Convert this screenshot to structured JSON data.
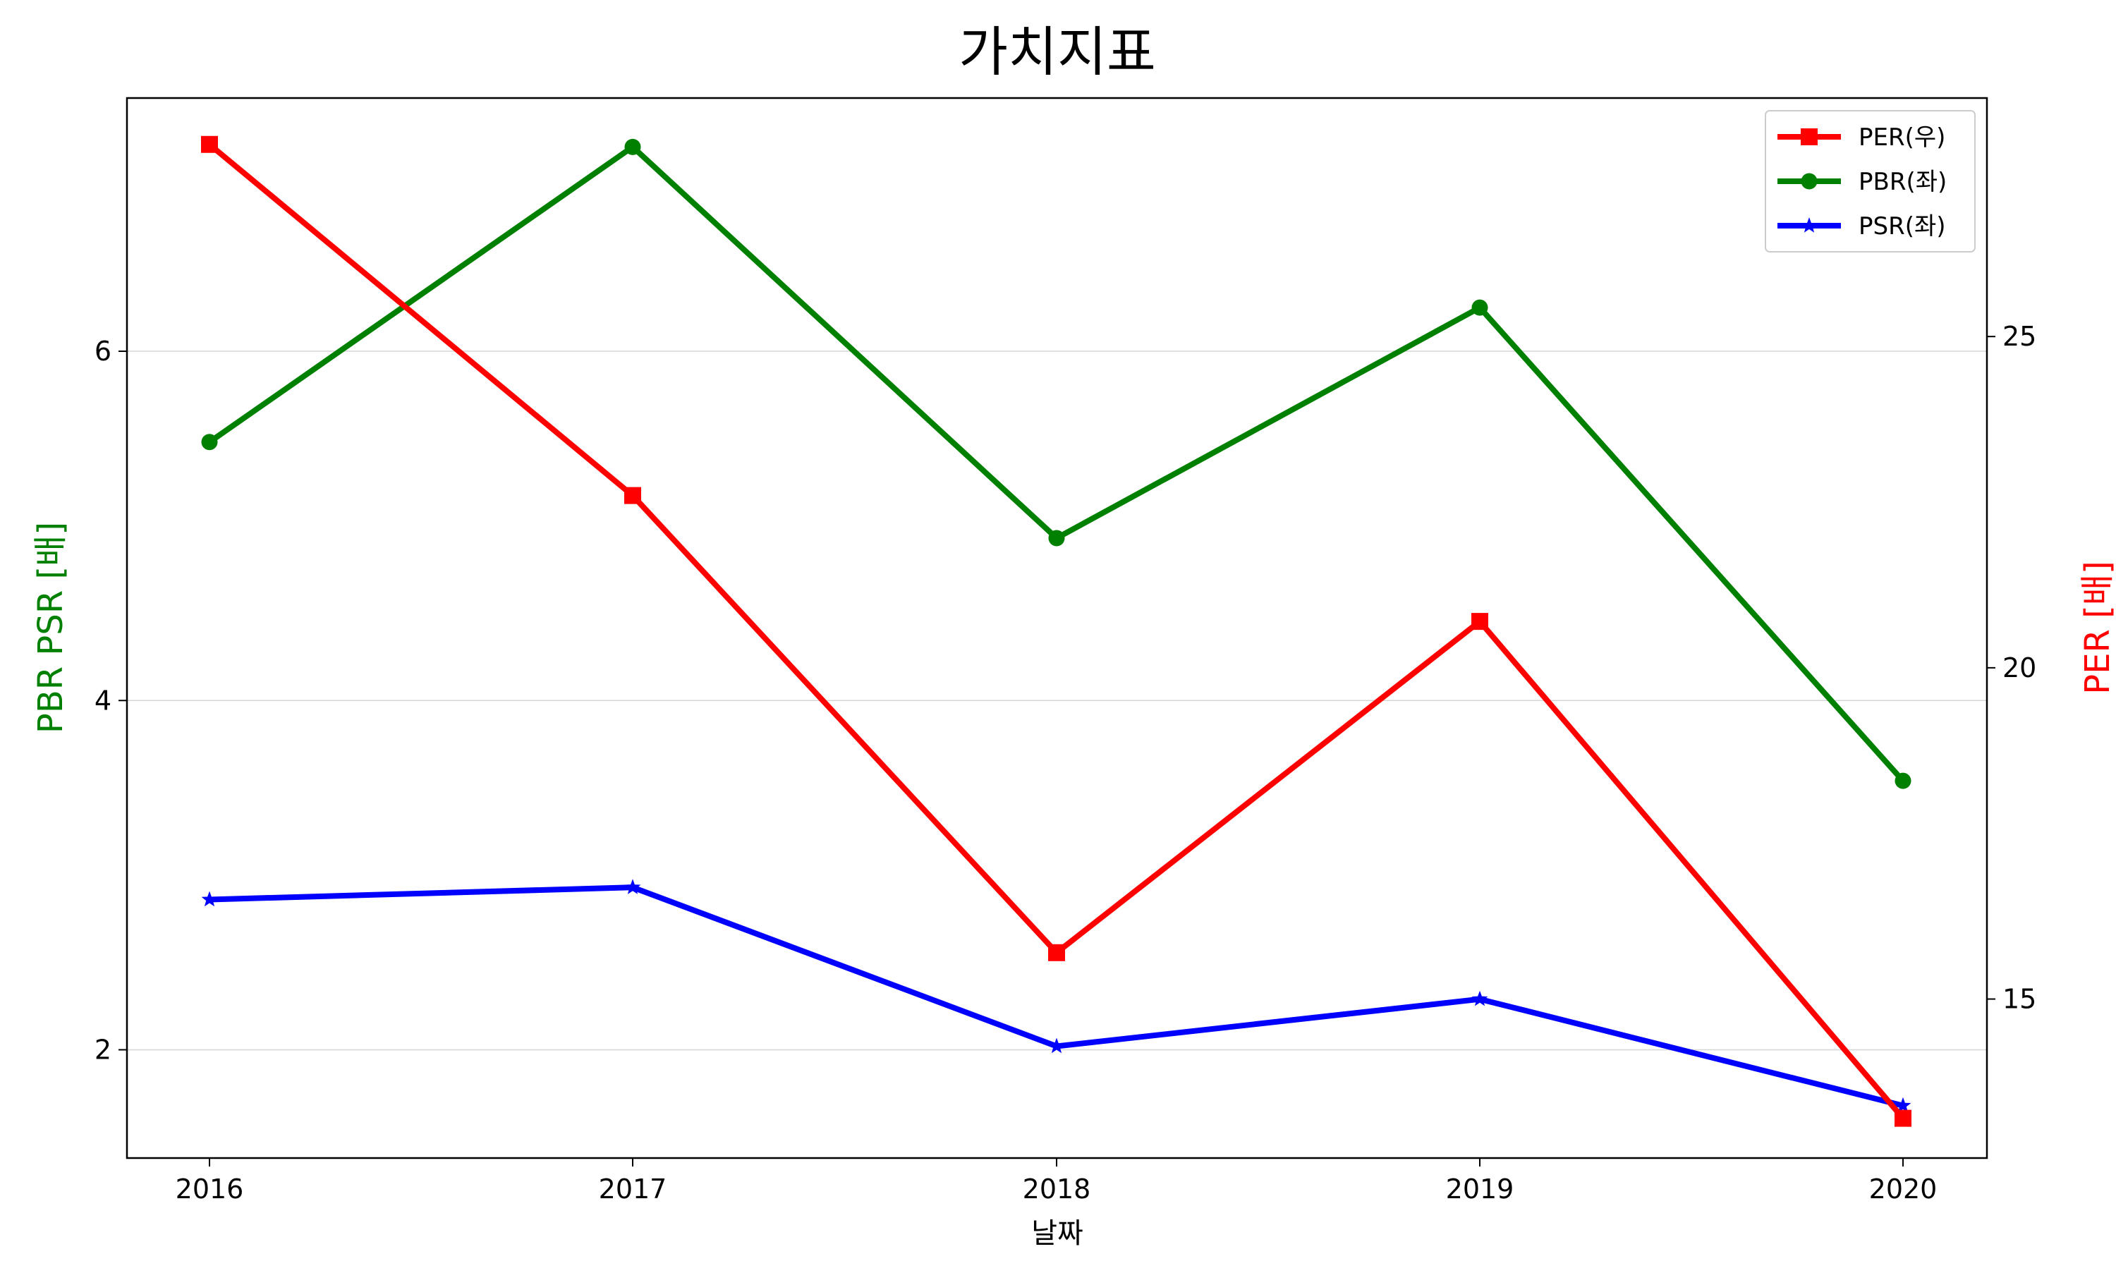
{
  "chart_data": {
    "type": "line",
    "title": "가치지표",
    "xlabel": "날짜",
    "ylabel_left": "PBR PSR [배]",
    "ylabel_right": "PER [배]",
    "x": [
      "2016",
      "2017",
      "2018",
      "2019",
      "2020"
    ],
    "left_axis": {
      "ylim": [
        1.38,
        7.45
      ],
      "ticks": [
        "2",
        "4",
        "6"
      ],
      "tick_values": [
        2,
        4,
        6
      ]
    },
    "right_axis": {
      "ylim": [
        12.6,
        28.6
      ],
      "ticks": [
        "15",
        "20",
        "25"
      ],
      "tick_values": [
        15,
        20,
        25
      ]
    },
    "grid": "horizontal, left axis only",
    "legend_position": "top-right",
    "series": [
      {
        "name": "PER(우)",
        "axis": "right",
        "color": "#ff0000",
        "marker": "square",
        "values": [
          27.9,
          22.6,
          15.7,
          20.7,
          13.2
        ]
      },
      {
        "name": "PBR(좌)",
        "axis": "left",
        "color": "#008000",
        "marker": "circle",
        "values": [
          5.48,
          7.17,
          4.93,
          6.25,
          3.54
        ]
      },
      {
        "name": "PSR(좌)",
        "axis": "left",
        "color": "#0000ff",
        "marker": "star",
        "values": [
          2.86,
          2.93,
          2.02,
          2.29,
          1.68
        ]
      }
    ]
  }
}
